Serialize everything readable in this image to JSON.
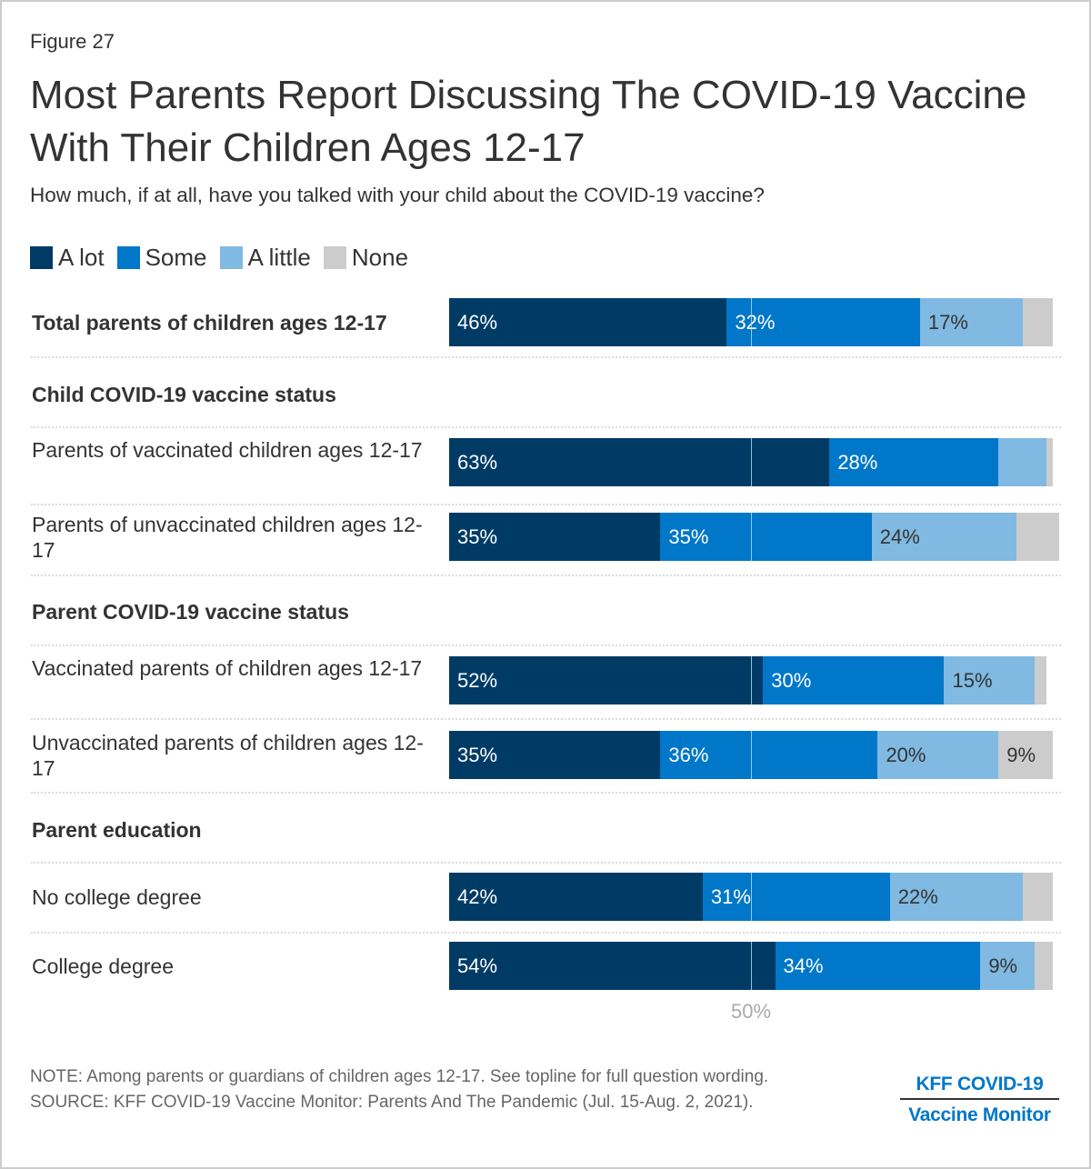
{
  "figure_number": "Figure 27",
  "title": "Most Parents Report Discussing The COVID-19 Vaccine With Their Children Ages 12-17",
  "subtitle": "How much, if at all, have you talked with your child about the COVID-19 vaccine?",
  "colors": {
    "a_lot": "#003b66",
    "some": "#0077c8",
    "a_little": "#80b9e1",
    "none": "#cccccc",
    "text": "#333333",
    "brand": "#0077c8"
  },
  "chart_data": {
    "type": "bar",
    "orientation": "horizontal",
    "stacked": true,
    "title": "Most Parents Report Discussing The COVID-19 Vaccine With Their Children Ages 12-17",
    "subtitle": "How much, if at all, have you talked with your child about the COVID-19 vaccine?",
    "legend": [
      "A lot",
      "Some",
      "A little",
      "None"
    ],
    "legend_position": "top-left",
    "xlim": [
      0,
      100
    ],
    "reference_line": {
      "value": 50,
      "label": "50%"
    },
    "rows": [
      {
        "type": "row",
        "label": "Total parents of children ages 12-17",
        "bold": true,
        "values": [
          46,
          32,
          17,
          5
        ],
        "labels": [
          "46%",
          "32%",
          "17%",
          ""
        ]
      },
      {
        "type": "section",
        "label": "Child COVID-19 vaccine status"
      },
      {
        "type": "row",
        "label": "Parents of vaccinated children ages 12-17",
        "bold": false,
        "values": [
          63,
          28,
          8,
          1
        ],
        "labels": [
          "63%",
          "28%",
          "",
          ""
        ]
      },
      {
        "type": "row",
        "label": "Parents of unvaccinated children ages 12-17",
        "bold": false,
        "values": [
          35,
          35,
          24,
          7
        ],
        "labels": [
          "35%",
          "35%",
          "24%",
          ""
        ]
      },
      {
        "type": "section",
        "label": "Parent COVID-19 vaccine status"
      },
      {
        "type": "row",
        "label": "Vaccinated parents of children ages 12-17",
        "bold": false,
        "values": [
          52,
          30,
          15,
          2
        ],
        "labels": [
          "52%",
          "30%",
          "15%",
          ""
        ]
      },
      {
        "type": "row",
        "label": "Unvaccinated parents of children ages 12-17",
        "bold": false,
        "values": [
          35,
          36,
          20,
          9
        ],
        "labels": [
          "35%",
          "36%",
          "20%",
          "9%"
        ]
      },
      {
        "type": "section",
        "label": "Parent education"
      },
      {
        "type": "row",
        "label": "No college degree",
        "bold": false,
        "values": [
          42,
          31,
          22,
          5
        ],
        "labels": [
          "42%",
          "31%",
          "22%",
          ""
        ]
      },
      {
        "type": "row",
        "label": "College degree",
        "bold": false,
        "values": [
          54,
          34,
          9,
          3
        ],
        "labels": [
          "54%",
          "34%",
          "9%",
          ""
        ]
      }
    ]
  },
  "footer": {
    "note": "NOTE: Among parents or guardians of children ages 12-17. See topline for full question wording.",
    "source": "SOURCE: KFF COVID-19 Vaccine Monitor: Parents And The Pandemic (Jul. 15-Aug. 2, 2021).",
    "brand_top": "KFF COVID-19",
    "brand_bottom": "Vaccine Monitor"
  }
}
